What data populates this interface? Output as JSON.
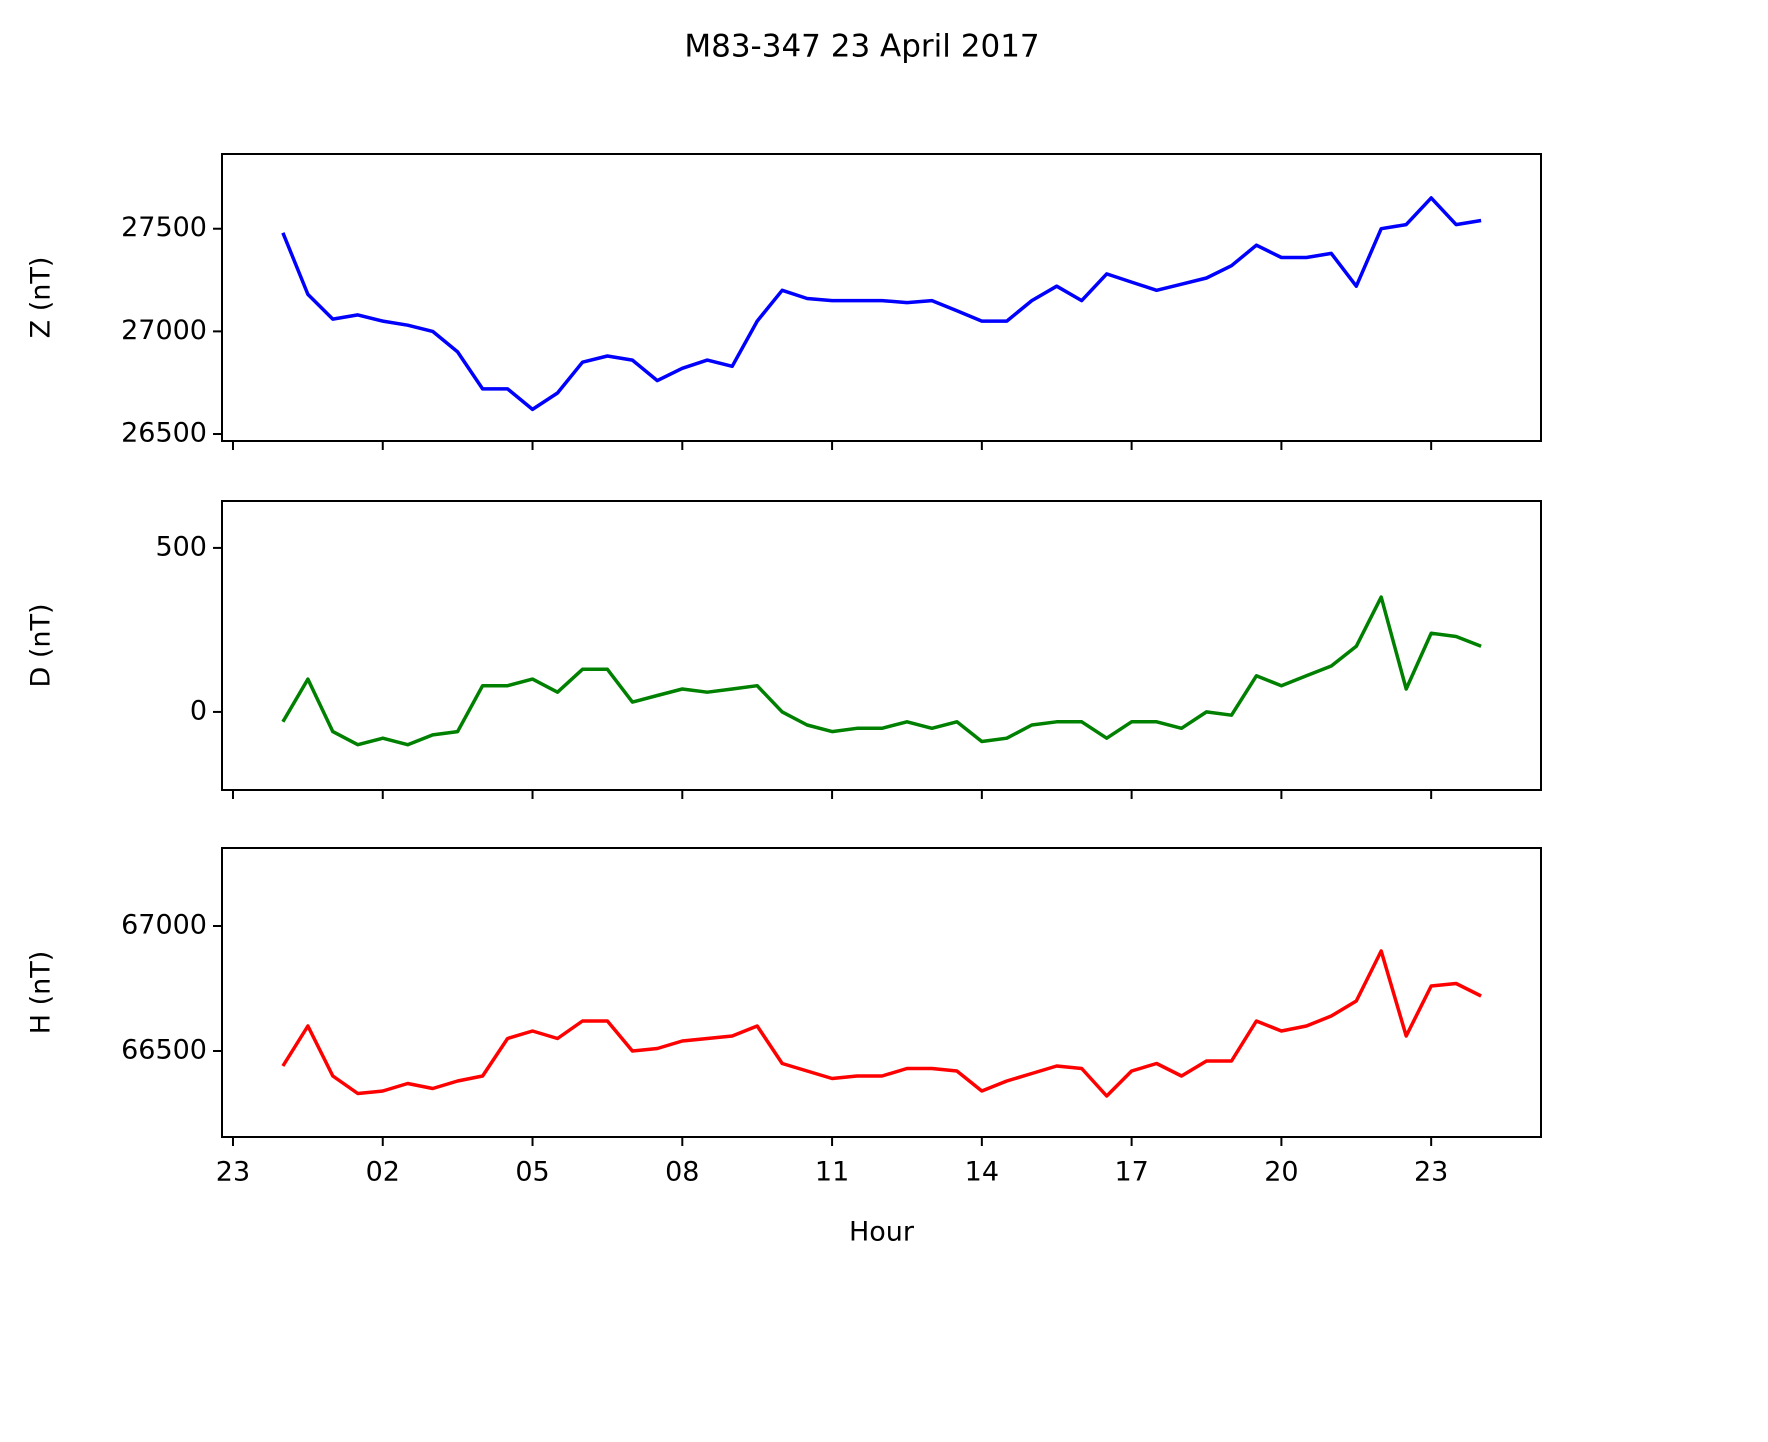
{
  "chart_data": [
    {
      "type": "line",
      "title": "M83-347 23 April 2017",
      "ylabel": "Z (nT)",
      "color": "#0000ff",
      "x": [
        0,
        0.5,
        1,
        1.5,
        2,
        2.5,
        3,
        3.5,
        4,
        4.5,
        5,
        5.5,
        6,
        6.5,
        7,
        7.5,
        8,
        8.5,
        9,
        9.5,
        10,
        10.5,
        11,
        11.5,
        12,
        12.5,
        13,
        13.5,
        14,
        14.5,
        15,
        15.5,
        16,
        16.5,
        17,
        17.5,
        18,
        18.5,
        19,
        19.5,
        20,
        20.5,
        21,
        21.5,
        22,
        22.5,
        23,
        23.5,
        24
      ],
      "values": [
        27480,
        27180,
        27060,
        27080,
        27050,
        27030,
        27000,
        26900,
        26720,
        26720,
        26620,
        26700,
        26850,
        26880,
        26860,
        26760,
        26820,
        26860,
        26830,
        27050,
        27200,
        27160,
        27150,
        27150,
        27150,
        27140,
        27150,
        27100,
        27050,
        27050,
        27150,
        27220,
        27150,
        27280,
        27240,
        27200,
        27230,
        27260,
        27320,
        27420,
        27360,
        27360,
        27380,
        27220,
        27500,
        27520,
        27650,
        27520,
        27540
      ],
      "xlim": [
        -1.22,
        25.2
      ],
      "xticks": [
        -1,
        2,
        5,
        8,
        11,
        14,
        17,
        20,
        23
      ],
      "ylim": [
        26466,
        27864
      ],
      "yticks": [
        26500,
        27000,
        27500
      ]
    },
    {
      "type": "line",
      "ylabel": "D (nT)",
      "color": "#008000",
      "x": [
        0,
        0.5,
        1,
        1.5,
        2,
        2.5,
        3,
        3.5,
        4,
        4.5,
        5,
        5.5,
        6,
        6.5,
        7,
        7.5,
        8,
        8.5,
        9,
        9.5,
        10,
        10.5,
        11,
        11.5,
        12,
        12.5,
        13,
        13.5,
        14,
        14.5,
        15,
        15.5,
        16,
        16.5,
        17,
        17.5,
        18,
        18.5,
        19,
        19.5,
        20,
        20.5,
        21,
        21.5,
        22,
        22.5,
        23,
        23.5,
        24
      ],
      "values": [
        -30,
        100,
        -60,
        -100,
        -80,
        -100,
        -70,
        -60,
        80,
        80,
        100,
        60,
        130,
        130,
        30,
        50,
        70,
        60,
        70,
        80,
        0,
        -40,
        -60,
        -50,
        -50,
        -30,
        -50,
        -30,
        -90,
        -80,
        -40,
        -30,
        -30,
        -80,
        -30,
        -30,
        -50,
        0,
        -10,
        110,
        80,
        110,
        140,
        200,
        350,
        70,
        240,
        230,
        200
      ],
      "xlim": [
        -1.22,
        25.2
      ],
      "xticks": [
        -1,
        2,
        5,
        8,
        11,
        14,
        17,
        20,
        23
      ],
      "ylim": [
        -238,
        643
      ],
      "yticks": [
        0,
        500
      ]
    },
    {
      "type": "line",
      "ylabel": "H (nT)",
      "xlabel": "Hour",
      "color": "#ff0000",
      "x": [
        0,
        0.5,
        1,
        1.5,
        2,
        2.5,
        3,
        3.5,
        4,
        4.5,
        5,
        5.5,
        6,
        6.5,
        7,
        7.5,
        8,
        8.5,
        9,
        9.5,
        10,
        10.5,
        11,
        11.5,
        12,
        12.5,
        13,
        13.5,
        14,
        14.5,
        15,
        15.5,
        16,
        16.5,
        17,
        17.5,
        18,
        18.5,
        19,
        19.5,
        20,
        20.5,
        21,
        21.5,
        22,
        22.5,
        23,
        23.5,
        24
      ],
      "values": [
        66440,
        66600,
        66400,
        66330,
        66340,
        66370,
        66350,
        66380,
        66400,
        66550,
        66580,
        66550,
        66620,
        66620,
        66500,
        66510,
        66540,
        66550,
        66560,
        66600,
        66450,
        66420,
        66390,
        66400,
        66400,
        66430,
        66430,
        66420,
        66340,
        66380,
        66410,
        66440,
        66430,
        66320,
        66420,
        66450,
        66400,
        66460,
        66460,
        66620,
        66580,
        66600,
        66640,
        66700,
        66900,
        66560,
        66760,
        66770,
        66720
      ],
      "xlim": [
        -1.22,
        25.2
      ],
      "xticks": [
        {
          "value": -1,
          "label": "23"
        },
        {
          "value": 2,
          "label": "02"
        },
        {
          "value": 5,
          "label": "05"
        },
        {
          "value": 8,
          "label": "08"
        },
        11,
        14,
        17,
        20,
        23
      ],
      "ylim": [
        66156,
        67312
      ],
      "yticks": [
        66500,
        67000
      ]
    }
  ]
}
